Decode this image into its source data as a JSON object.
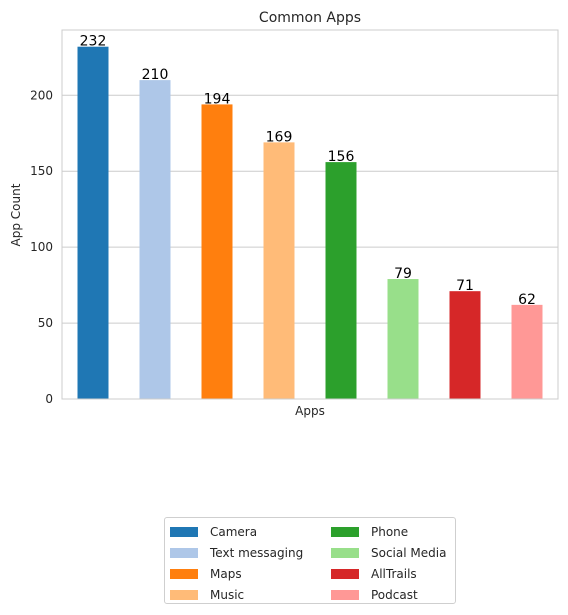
{
  "chart_data": {
    "type": "bar",
    "title": "Common Apps",
    "xlabel": "Apps",
    "ylabel": "App Count",
    "categories": [
      "Camera",
      "Text messaging",
      "Maps",
      "Music",
      "Phone",
      "Social Media",
      "AllTrails",
      "Podcast"
    ],
    "values": [
      232,
      210,
      194,
      169,
      156,
      79,
      71,
      62
    ],
    "colors": [
      "#1f77b4",
      "#aec7e8",
      "#ff7f0e",
      "#ffbb78",
      "#2ca02c",
      "#98df8a",
      "#d62728",
      "#ff9896"
    ],
    "ylim": [
      0,
      243
    ],
    "yticks": [
      0,
      50,
      100,
      150,
      200
    ],
    "grid": true,
    "legend_position": "bottom-center"
  }
}
